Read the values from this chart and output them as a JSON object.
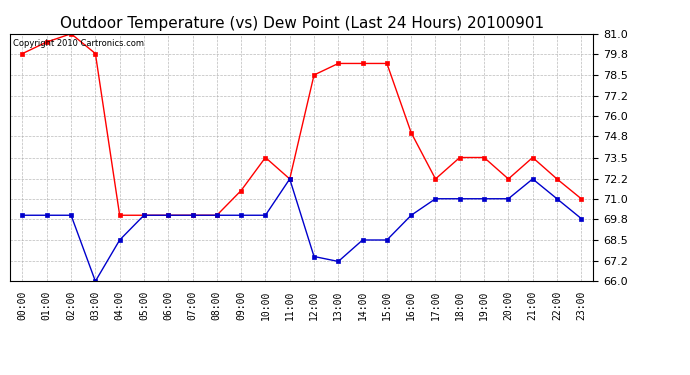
{
  "title": "Outdoor Temperature (vs) Dew Point (Last 24 Hours) 20100901",
  "copyright_text": "Copyright 2010 Cartronics.com",
  "x_labels": [
    "00:00",
    "01:00",
    "02:00",
    "03:00",
    "04:00",
    "05:00",
    "06:00",
    "07:00",
    "08:00",
    "09:00",
    "10:00",
    "11:00",
    "12:00",
    "13:00",
    "14:00",
    "15:00",
    "16:00",
    "17:00",
    "18:00",
    "19:00",
    "20:00",
    "21:00",
    "22:00",
    "23:00"
  ],
  "temp_red": [
    79.8,
    80.5,
    81.0,
    79.8,
    70.0,
    70.0,
    70.0,
    70.0,
    70.0,
    71.5,
    73.5,
    72.2,
    78.5,
    79.2,
    79.2,
    79.2,
    75.0,
    72.2,
    73.5,
    73.5,
    72.2,
    73.5,
    72.2,
    71.0
  ],
  "dew_blue": [
    70.0,
    70.0,
    70.0,
    66.0,
    68.5,
    70.0,
    70.0,
    70.0,
    70.0,
    70.0,
    70.0,
    72.2,
    67.5,
    67.2,
    68.5,
    68.5,
    70.0,
    71.0,
    71.0,
    71.0,
    71.0,
    72.2,
    71.0,
    69.8
  ],
  "ylim": [
    66.0,
    81.0
  ],
  "yticks": [
    66.0,
    67.2,
    68.5,
    69.8,
    71.0,
    72.2,
    73.5,
    74.8,
    76.0,
    77.2,
    78.5,
    79.8,
    81.0
  ],
  "bg_color": "#ffffff",
  "grid_color": "#aaaaaa",
  "temp_color": "#ff0000",
  "dew_color": "#0000cc",
  "title_color": "#000000",
  "title_fontsize": 11,
  "marker_size": 3.5,
  "linewidth": 1.0
}
